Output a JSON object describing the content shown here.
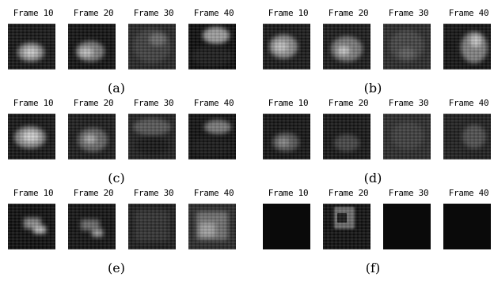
{
  "panels": [
    {
      "caption": "(a)",
      "frames": [
        {
          "label": "Frame 10"
        },
        {
          "label": "Frame 20"
        },
        {
          "label": "Frame 30"
        },
        {
          "label": "Frame 40"
        }
      ]
    },
    {
      "caption": "(b)",
      "frames": [
        {
          "label": "Frame 10"
        },
        {
          "label": "Frame 20"
        },
        {
          "label": "Frame 30"
        },
        {
          "label": "Frame 40"
        }
      ]
    },
    {
      "caption": "(c)",
      "frames": [
        {
          "label": "Frame 10"
        },
        {
          "label": "Frame 20"
        },
        {
          "label": "Frame 30"
        },
        {
          "label": "Frame 40"
        }
      ]
    },
    {
      "caption": "(d)",
      "frames": [
        {
          "label": "Frame 10"
        },
        {
          "label": "Frame 20"
        },
        {
          "label": "Frame 30"
        },
        {
          "label": "Frame 40"
        }
      ]
    },
    {
      "caption": "(e)",
      "frames": [
        {
          "label": "Frame 10"
        },
        {
          "label": "Frame 20"
        },
        {
          "label": "Frame 30"
        },
        {
          "label": "Frame 40"
        }
      ]
    },
    {
      "caption": "(f)",
      "frames": [
        {
          "label": "Frame 10"
        },
        {
          "label": "Frame 20"
        },
        {
          "label": "Frame 30"
        },
        {
          "label": "Frame 40"
        }
      ]
    }
  ]
}
